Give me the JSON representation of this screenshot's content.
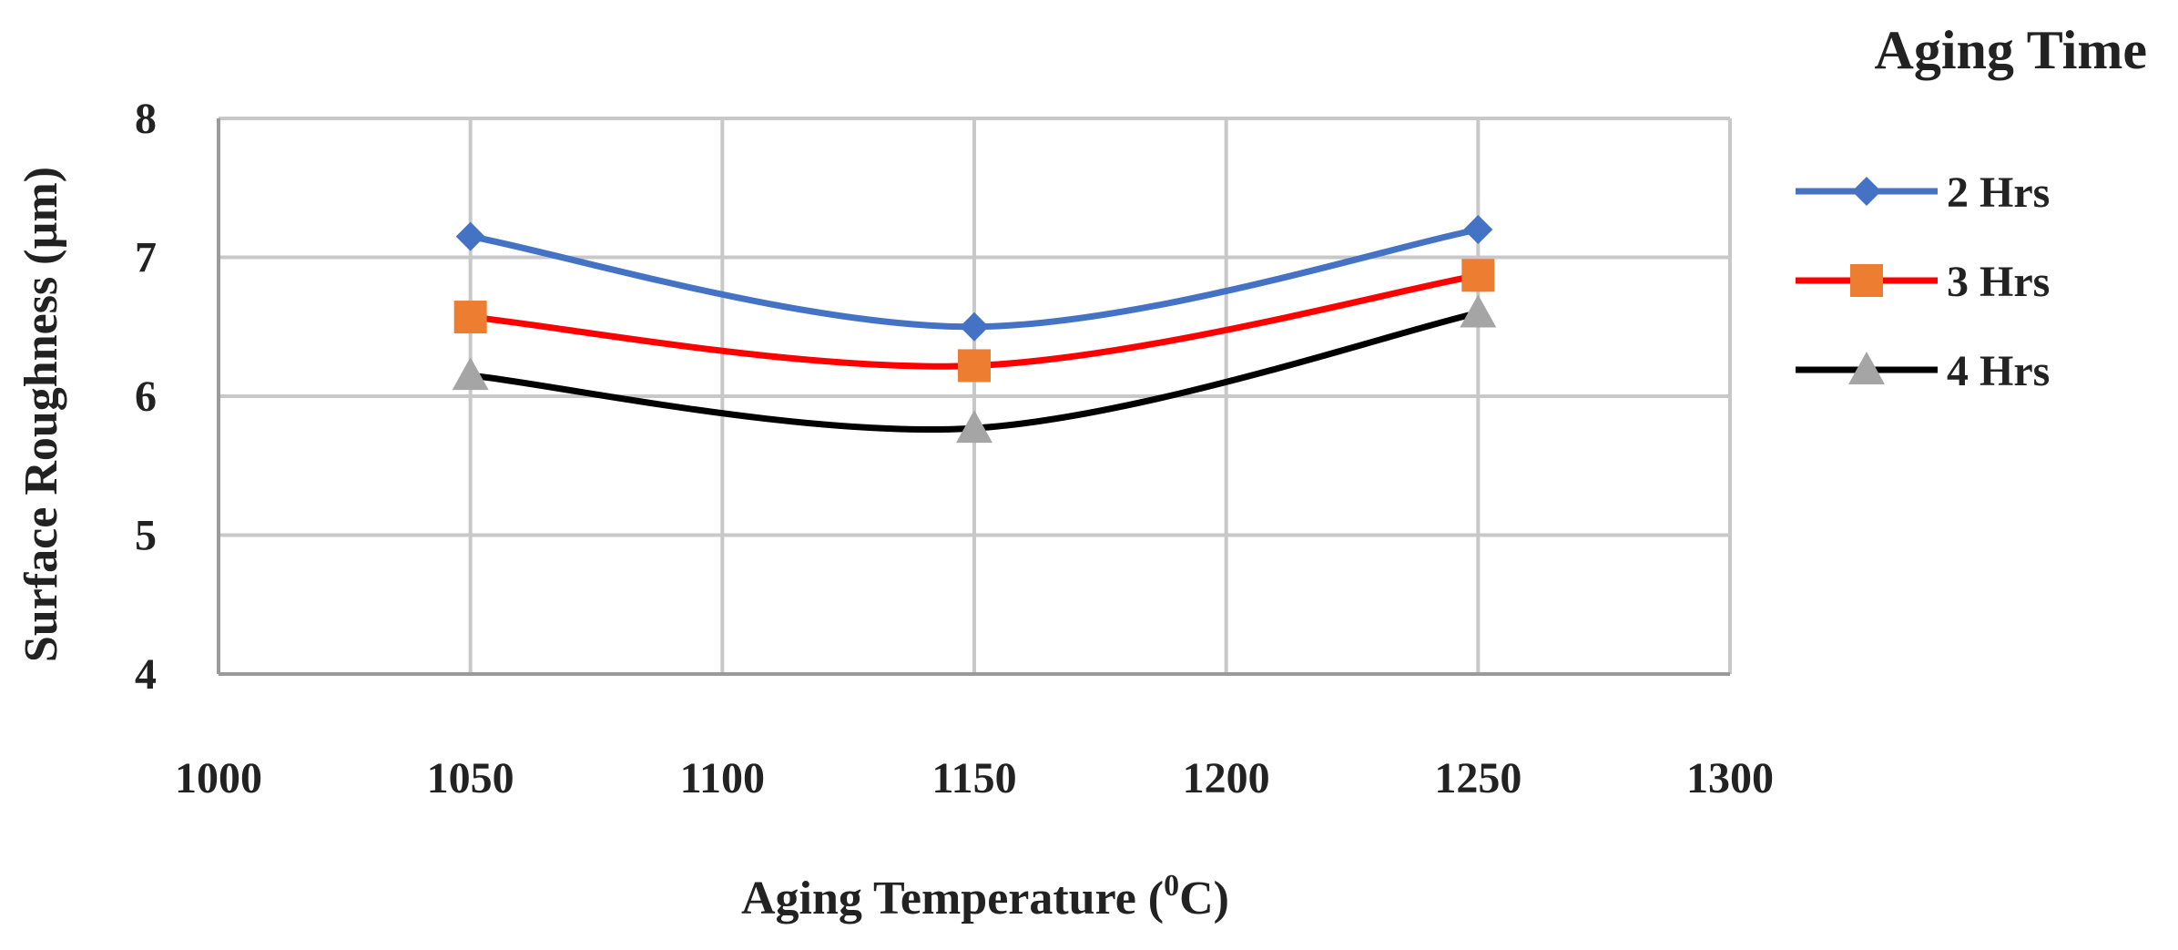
{
  "chart_data": {
    "type": "line",
    "title": "",
    "xlabel": "Aging Temperature (",
    "xlabel_sup": "0",
    "xlabel_unit": "C)",
    "ylabel": "Surface Roughness (µm)",
    "xlim": [
      1000,
      1300
    ],
    "ylim": [
      4,
      8
    ],
    "x_ticks": [
      "1000",
      "1050",
      "1100",
      "1150",
      "1200",
      "1250",
      "1300"
    ],
    "y_ticks": [
      "4",
      "5",
      "6",
      "7",
      "8"
    ],
    "x_tick_values": [
      1000,
      1050,
      1100,
      1150,
      1200,
      1250,
      1300
    ],
    "y_tick_values": [
      4,
      5,
      6,
      7,
      8
    ],
    "grid": true,
    "smooth": true,
    "legend_title": "Aging Time",
    "legend_position": "right",
    "x": [
      1050,
      1150,
      1250
    ],
    "series": [
      {
        "name": "2 Hrs",
        "values": [
          7.15,
          6.5,
          7.2
        ],
        "color": "#4472C4",
        "marker": "diamond",
        "marker_color": "#4472C4"
      },
      {
        "name": "3 Hrs",
        "values": [
          6.57,
          6.22,
          6.87
        ],
        "color": "#FF0000",
        "marker": "square",
        "marker_color": "#ED7D31"
      },
      {
        "name": "4 Hrs",
        "values": [
          6.15,
          5.77,
          6.6
        ],
        "color": "#000000",
        "marker": "triangle",
        "marker_color": "#A5A5A5"
      }
    ]
  }
}
